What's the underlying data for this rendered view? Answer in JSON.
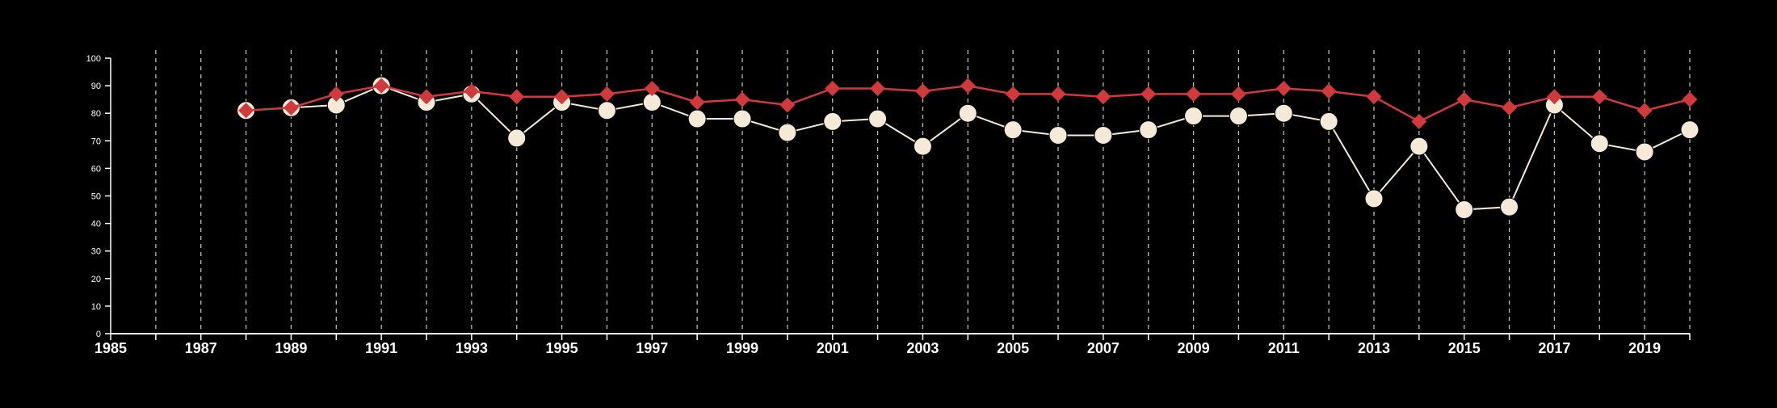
{
  "chart_data": {
    "type": "line",
    "title": "",
    "xlabel": "",
    "ylabel": "",
    "xlim": [
      1985,
      2020
    ],
    "ylim": [
      0,
      100
    ],
    "yticks": [
      0,
      10,
      20,
      30,
      40,
      50,
      60,
      70,
      80,
      90,
      100
    ],
    "xticks": [
      1985,
      1987,
      1989,
      1991,
      1993,
      1995,
      1997,
      1999,
      2001,
      2003,
      2005,
      2007,
      2009,
      2011,
      2013,
      2015,
      2017,
      2019
    ],
    "grid": "vertical-dashed",
    "x": [
      1988,
      1989,
      1990,
      1991,
      1992,
      1993,
      1994,
      1995,
      1996,
      1997,
      1998,
      1999,
      2000,
      2001,
      2002,
      2003,
      2004,
      2005,
      2006,
      2007,
      2008,
      2009,
      2010,
      2011,
      2012,
      2013,
      2014,
      2015,
      2016,
      2017,
      2018,
      2019,
      2020
    ],
    "series": [
      {
        "marker": "diamond",
        "color": "#d03a3d",
        "values": [
          81,
          82,
          87,
          90,
          86,
          88,
          86,
          86,
          87,
          89,
          84,
          85,
          83,
          89,
          89,
          88,
          90,
          87,
          87,
          86,
          87,
          87,
          87,
          89,
          88,
          86,
          77,
          85,
          82,
          86,
          86,
          81,
          85
        ]
      },
      {
        "marker": "circle",
        "color": "#f5ead8",
        "values": [
          81,
          82,
          83,
          90,
          84,
          87,
          71,
          84,
          81,
          84,
          78,
          78,
          73,
          77,
          78,
          68,
          80,
          74,
          72,
          72,
          74,
          79,
          79,
          80,
          77,
          49,
          68,
          45,
          46,
          83,
          69,
          66,
          74
        ]
      }
    ]
  },
  "colors": {
    "background": "#000000",
    "axis": "#ffffff",
    "grid": "#bbbbbb"
  }
}
